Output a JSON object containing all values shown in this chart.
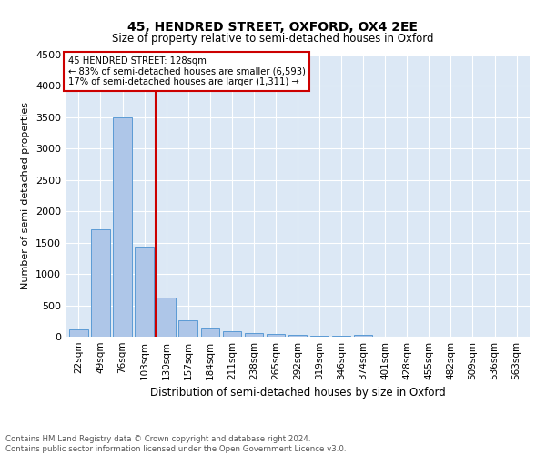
{
  "title": "45, HENDRED STREET, OXFORD, OX4 2EE",
  "subtitle": "Size of property relative to semi-detached houses in Oxford",
  "xlabel": "Distribution of semi-detached houses by size in Oxford",
  "ylabel": "Number of semi-detached properties",
  "footnote1": "Contains HM Land Registry data © Crown copyright and database right 2024.",
  "footnote2": "Contains public sector information licensed under the Open Government Licence v3.0.",
  "bar_labels": [
    "22sqm",
    "49sqm",
    "76sqm",
    "103sqm",
    "130sqm",
    "157sqm",
    "184sqm",
    "211sqm",
    "238sqm",
    "265sqm",
    "292sqm",
    "319sqm",
    "346sqm",
    "374sqm",
    "401sqm",
    "428sqm",
    "455sqm",
    "482sqm",
    "509sqm",
    "536sqm",
    "563sqm"
  ],
  "bar_values": [
    120,
    1720,
    3500,
    1440,
    630,
    265,
    150,
    90,
    65,
    45,
    25,
    15,
    10,
    35,
    0,
    0,
    0,
    0,
    0,
    0,
    0
  ],
  "bar_color": "#aec6e8",
  "bar_edge_color": "#5b9bd5",
  "property_line_x": 4,
  "annotation_text_line1": "45 HENDRED STREET: 128sqm",
  "annotation_text_line2": "← 83% of semi-detached houses are smaller (6,593)",
  "annotation_text_line3": "17% of semi-detached houses are larger (1,311) →",
  "ylim": [
    0,
    4500
  ],
  "yticks": [
    0,
    500,
    1000,
    1500,
    2000,
    2500,
    3000,
    3500,
    4000,
    4500
  ],
  "line_color": "#cc0000",
  "annotation_box_color": "#cc0000",
  "bg_color": "#dce8f5"
}
